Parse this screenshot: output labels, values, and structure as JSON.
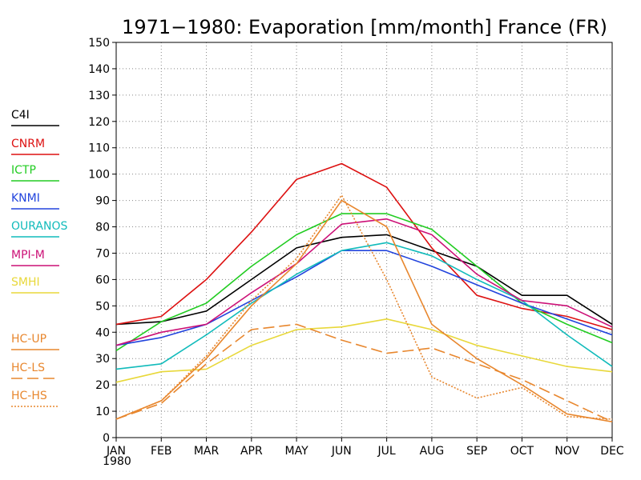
{
  "chart_data": {
    "type": "line",
    "title": "1971−1980: Evaporation [mm/month] France (FR)",
    "xlabel": "",
    "ylabel": "",
    "categories": [
      "JAN",
      "FEB",
      "MAR",
      "APR",
      "MAY",
      "JUN",
      "JUL",
      "AUG",
      "SEP",
      "OCT",
      "NOV",
      "DEC"
    ],
    "year_label": "1980",
    "ylim": [
      0,
      150
    ],
    "yticks": [
      0,
      10,
      20,
      30,
      40,
      50,
      60,
      70,
      80,
      90,
      100,
      110,
      120,
      130,
      140,
      150
    ],
    "grid": true,
    "legend_position": "left",
    "series": [
      {
        "name": "C4I",
        "color": "#000000",
        "dash": "solid",
        "values": [
          43,
          44,
          48,
          60,
          72,
          76,
          77,
          71,
          65,
          54,
          54,
          43
        ]
      },
      {
        "name": "CNRM",
        "color": "#dd1111",
        "dash": "solid",
        "values": [
          43,
          46,
          60,
          78,
          98,
          104,
          95,
          72,
          54,
          49,
          46,
          41
        ]
      },
      {
        "name": "ICTP",
        "color": "#22cc22",
        "dash": "solid",
        "values": [
          33,
          44,
          51,
          65,
          77,
          85,
          85,
          79,
          65,
          51,
          43,
          36
        ]
      },
      {
        "name": "KNMI",
        "color": "#2244dd",
        "dash": "solid",
        "values": [
          35,
          38,
          43,
          52,
          61,
          71,
          71,
          65,
          58,
          51,
          45,
          39
        ]
      },
      {
        "name": "OURANOS",
        "color": "#11bbbb",
        "dash": "solid",
        "values": [
          26,
          28,
          39,
          51,
          62,
          71,
          74,
          69,
          60,
          52,
          39,
          27
        ]
      },
      {
        "name": "MPI-M",
        "color": "#cc1177",
        "dash": "solid",
        "values": [
          35,
          40,
          43,
          55,
          66,
          81,
          83,
          77,
          62,
          52,
          50,
          42
        ]
      },
      {
        "name": "SMHI",
        "color": "#e8d83a",
        "dash": "solid",
        "values": [
          21,
          25,
          26,
          35,
          41,
          42,
          45,
          41,
          35,
          31,
          27,
          25
        ]
      },
      {
        "name": "HC-UP",
        "color": "#e8872e",
        "dash": "solid",
        "values": [
          7,
          14,
          30,
          50,
          66,
          90,
          80,
          43,
          30,
          20,
          9,
          6
        ]
      },
      {
        "name": "HC-LS",
        "color": "#e8872e",
        "dash": "dashed",
        "values": [
          7,
          13,
          28,
          41,
          43,
          37,
          32,
          34,
          28,
          22,
          14,
          6
        ]
      },
      {
        "name": "HC-HS",
        "color": "#e8872e",
        "dash": "dotted",
        "values": [
          7,
          14,
          31,
          52,
          68,
          92,
          60,
          23,
          15,
          19,
          8,
          7
        ]
      }
    ]
  }
}
